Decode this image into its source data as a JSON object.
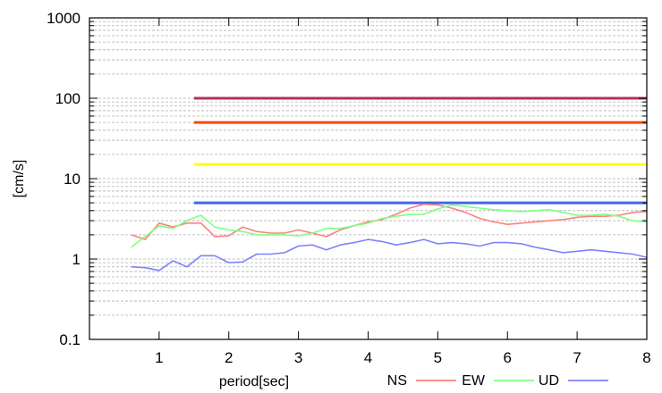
{
  "chart_data": {
    "type": "line",
    "xlabel": "period[sec]",
    "ylabel": "[cm/s]",
    "xlim": [
      0,
      8
    ],
    "ylim": [
      0.1,
      1000
    ],
    "y_scale": "log",
    "grid": "dashed horizontal minor and major lines",
    "x_ticks": [
      "1",
      "2",
      "3",
      "4",
      "5",
      "6",
      "7",
      "8"
    ],
    "y_ticks": [
      "0.1",
      "1",
      "10",
      "100",
      "1000"
    ],
    "legend_placement": "bottom-right, outside plot",
    "reference_lines": [
      {
        "value": 100,
        "x_range": [
          1.5,
          8
        ],
        "color": "#b03060"
      },
      {
        "value": 50,
        "x_range": [
          1.5,
          8
        ],
        "color": "#ff4500"
      },
      {
        "value": 15,
        "x_range": [
          1.5,
          8
        ],
        "color": "#ffff00"
      },
      {
        "value": 5,
        "x_range": [
          1.5,
          8
        ],
        "color": "#4169e1"
      }
    ],
    "series": [
      {
        "name": "NS",
        "color": "#ff8080",
        "x": [
          0.6,
          0.8,
          1.0,
          1.2,
          1.4,
          1.6,
          1.8,
          2.0,
          2.2,
          2.4,
          2.6,
          2.8,
          3.0,
          3.2,
          3.4,
          3.6,
          3.8,
          4.0,
          4.2,
          4.4,
          4.6,
          4.8,
          5.0,
          5.2,
          5.4,
          5.6,
          5.8,
          6.0,
          6.2,
          6.4,
          6.6,
          6.8,
          7.0,
          7.2,
          7.4,
          7.6,
          7.8,
          8.0
        ],
        "values": [
          2.0,
          1.75,
          2.8,
          2.5,
          2.8,
          2.8,
          1.9,
          1.95,
          2.5,
          2.2,
          2.1,
          2.1,
          2.3,
          2.1,
          1.9,
          2.3,
          2.6,
          2.9,
          3.1,
          3.6,
          4.3,
          4.8,
          4.7,
          4.3,
          3.8,
          3.2,
          2.9,
          2.7,
          2.8,
          2.9,
          3.0,
          3.1,
          3.3,
          3.4,
          3.4,
          3.5,
          3.8,
          3.9
        ]
      },
      {
        "name": "EW",
        "color": "#80ff80",
        "x": [
          0.6,
          0.8,
          1.0,
          1.2,
          1.4,
          1.6,
          1.8,
          2.0,
          2.2,
          2.4,
          2.6,
          2.8,
          3.0,
          3.2,
          3.4,
          3.6,
          3.8,
          4.0,
          4.2,
          4.4,
          4.6,
          4.8,
          5.0,
          5.2,
          5.4,
          5.6,
          5.8,
          6.0,
          6.2,
          6.4,
          6.6,
          6.8,
          7.0,
          7.2,
          7.4,
          7.6,
          7.8,
          8.0
        ],
        "values": [
          1.4,
          1.9,
          2.6,
          2.4,
          3.0,
          3.5,
          2.5,
          2.3,
          2.2,
          2.0,
          2.0,
          2.0,
          1.95,
          2.1,
          2.4,
          2.4,
          2.6,
          2.8,
          3.2,
          3.4,
          3.6,
          3.6,
          4.2,
          4.7,
          4.5,
          4.3,
          4.1,
          4.0,
          3.9,
          4.0,
          4.1,
          3.8,
          3.5,
          3.5,
          3.6,
          3.4,
          3.0,
          2.9
        ]
      },
      {
        "name": "UD",
        "color": "#8080ff",
        "x": [
          0.6,
          0.8,
          1.0,
          1.2,
          1.4,
          1.6,
          1.8,
          2.0,
          2.2,
          2.4,
          2.6,
          2.8,
          3.0,
          3.2,
          3.4,
          3.6,
          3.8,
          4.0,
          4.2,
          4.4,
          4.6,
          4.8,
          5.0,
          5.2,
          5.4,
          5.6,
          5.8,
          6.0,
          6.2,
          6.4,
          6.6,
          6.8,
          7.0,
          7.2,
          7.4,
          7.6,
          7.8,
          8.0
        ],
        "values": [
          0.8,
          0.78,
          0.72,
          0.95,
          0.8,
          1.1,
          1.1,
          0.9,
          0.92,
          1.15,
          1.15,
          1.2,
          1.45,
          1.5,
          1.3,
          1.5,
          1.6,
          1.75,
          1.65,
          1.5,
          1.6,
          1.75,
          1.55,
          1.6,
          1.55,
          1.45,
          1.6,
          1.6,
          1.55,
          1.4,
          1.3,
          1.2,
          1.25,
          1.3,
          1.25,
          1.2,
          1.15,
          1.05
        ]
      }
    ]
  }
}
